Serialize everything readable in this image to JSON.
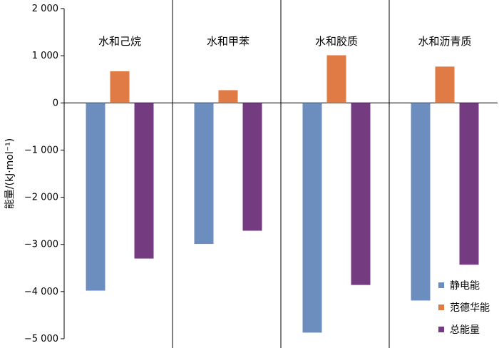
{
  "chart_data": {
    "type": "bar",
    "categories": [
      "水和己烷",
      "水和甲苯",
      "水和胶质",
      "水和沥青质"
    ],
    "series": [
      {
        "name": "静电能",
        "color": "#6c8ebf",
        "values": [
          -3980,
          -2990,
          -4870,
          -4190
        ]
      },
      {
        "name": "范德华能",
        "color": "#e07b45",
        "values": [
          670,
          270,
          1010,
          770
        ]
      },
      {
        "name": "总能量",
        "color": "#743b81",
        "values": [
          -3300,
          -2710,
          -3860,
          -3430
        ]
      }
    ],
    "ylabel": "能量/(kJ·mol⁻¹)",
    "ylim": [
      -5000,
      2000
    ],
    "yticks": [
      2000,
      1000,
      0,
      -1000,
      -2000,
      -3000,
      -4000,
      -5000
    ],
    "ytick_labels": [
      "2 000",
      "1 000",
      "0",
      "−1 000",
      "−2 000",
      "−3 000",
      "−4 000",
      "−5 000"
    ],
    "legend_position": "bottom-right",
    "grid": false
  }
}
